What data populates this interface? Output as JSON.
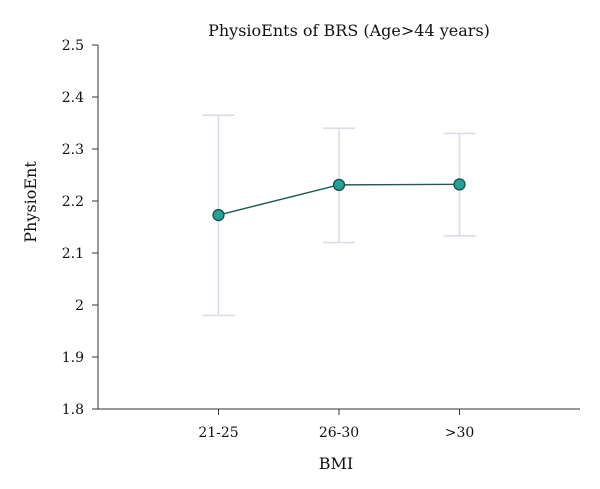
{
  "chart_data": {
    "type": "line",
    "title": "PhysioEnts of BRS (Age>44 years)",
    "xlabel": "BMI",
    "ylabel": "PhysioEnt",
    "categories": [
      "21-25",
      "26-30",
      ">30"
    ],
    "series": [
      {
        "values": [
          2.173,
          2.231,
          2.232
        ],
        "error_low": [
          1.98,
          2.12,
          2.133
        ],
        "error_high": [
          2.365,
          2.34,
          2.33
        ]
      }
    ],
    "ylim": [
      1.8,
      2.5
    ],
    "yticks": [
      "1.8",
      "1.9",
      "2",
      "2.1",
      "2.2",
      "2.3",
      "2.4",
      "2.5"
    ],
    "grid": false,
    "colors": {
      "line": "#1d5b57",
      "marker": "#22a19b",
      "marker_edge": "#1b4d4a",
      "error_bar": "#dcdcec",
      "axis": "#333333"
    }
  }
}
